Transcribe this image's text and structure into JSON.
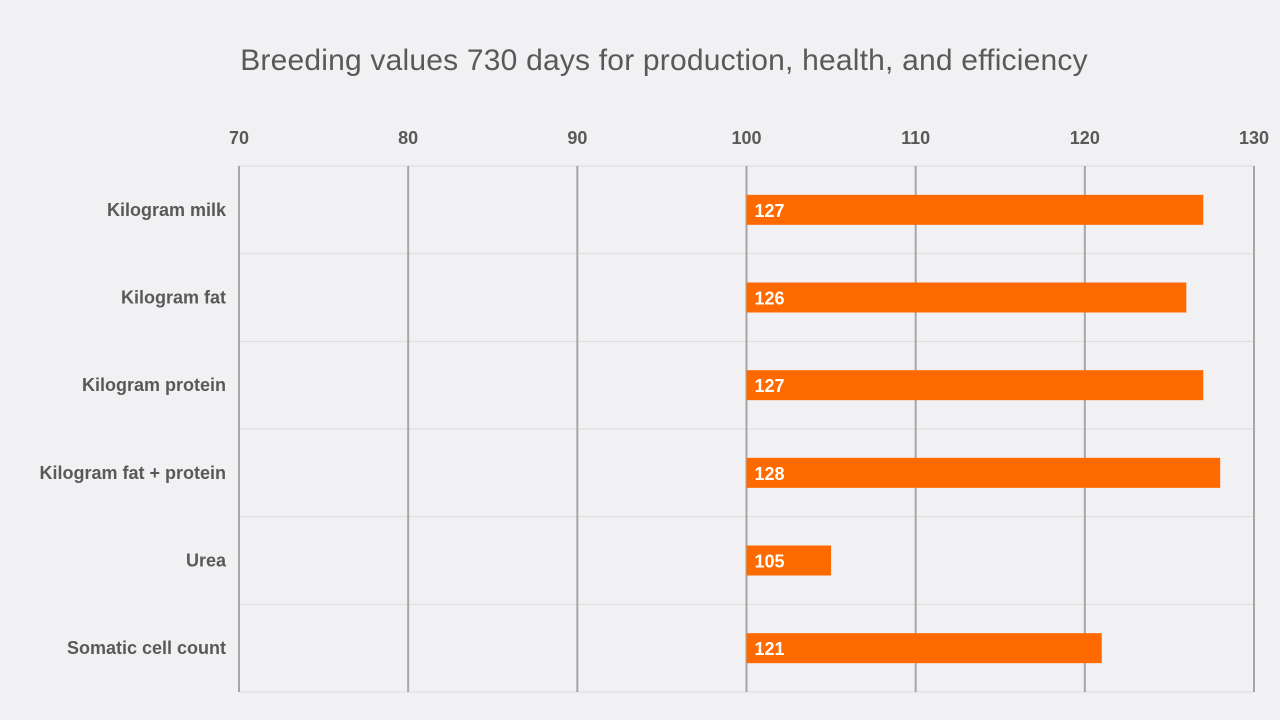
{
  "chart_data": {
    "type": "bar",
    "orientation": "horizontal",
    "title": "Breeding values 730 days for production, health, and efficiency",
    "xlabel": "",
    "ylabel": "",
    "xlim": [
      70,
      130
    ],
    "ticks": [
      70,
      80,
      90,
      100,
      110,
      120,
      130
    ],
    "baseline": 100,
    "axis_position": "top",
    "grid": true,
    "categories": [
      "Kilogram milk",
      "Kilogram fat",
      "Kilogram protein",
      "Kilogram fat + protein",
      "Urea",
      "Somatic cell count"
    ],
    "values": [
      127,
      126,
      127,
      128,
      105,
      121
    ],
    "bar_color": "#ff6a00"
  }
}
